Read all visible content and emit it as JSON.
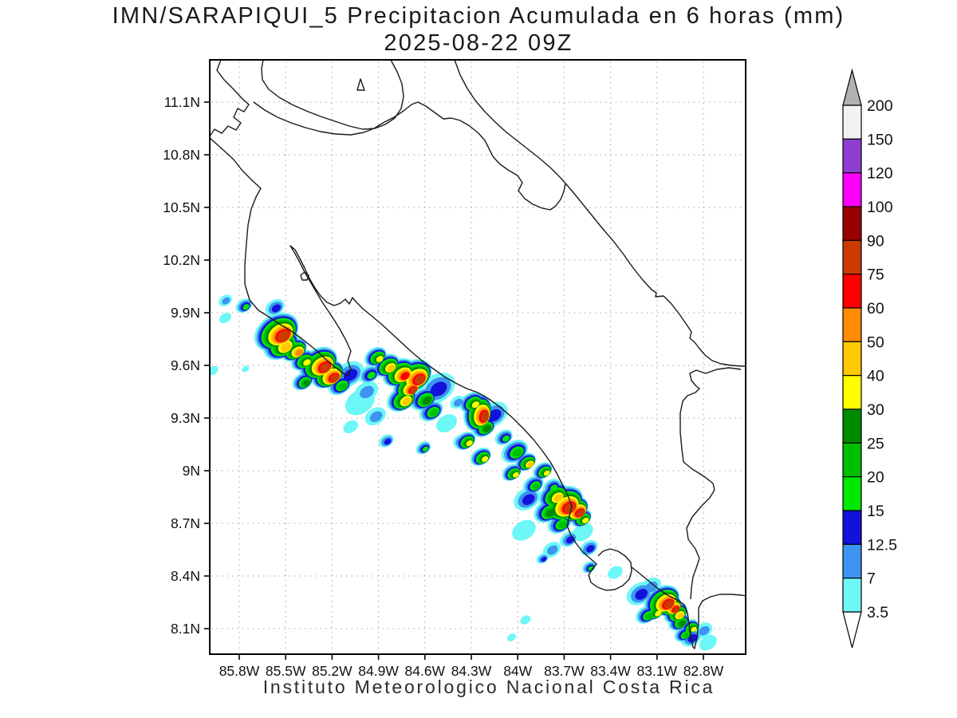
{
  "title": {
    "line1": "IMN/SARAPIQUI_5 Precipitacion Acumulada en 6 horas (mm)",
    "line2": "2025-08-22 09Z"
  },
  "footer": {
    "text": "Instituto Meteorologico Nacional Costa Rica"
  },
  "axes": {
    "lat_ticks": [
      {
        "label": "11.1N",
        "deg": 11.1
      },
      {
        "label": "10.8N",
        "deg": 10.8
      },
      {
        "label": "10.5N",
        "deg": 10.5
      },
      {
        "label": "10.2N",
        "deg": 10.2
      },
      {
        "label": "9.9N",
        "deg": 9.9
      },
      {
        "label": "9.6N",
        "deg": 9.6
      },
      {
        "label": "9.3N",
        "deg": 9.3
      },
      {
        "label": "9N",
        "deg": 9.0
      },
      {
        "label": "8.7N",
        "deg": 8.7
      },
      {
        "label": "8.4N",
        "deg": 8.4
      },
      {
        "label": "8.1N",
        "deg": 8.1
      }
    ],
    "lon_ticks": [
      {
        "label": "85.8W",
        "deg": 85.8
      },
      {
        "label": "85.5W",
        "deg": 85.5
      },
      {
        "label": "85.2W",
        "deg": 85.2
      },
      {
        "label": "84.9W",
        "deg": 84.9
      },
      {
        "label": "84.6W",
        "deg": 84.6
      },
      {
        "label": "84.3W",
        "deg": 84.3
      },
      {
        "label": "84W",
        "deg": 84.0
      },
      {
        "label": "83.7W",
        "deg": 83.7
      },
      {
        "label": "83.4W",
        "deg": 83.4
      },
      {
        "label": "83.1W",
        "deg": 83.1
      },
      {
        "label": "82.8W",
        "deg": 82.8
      }
    ]
  },
  "colorbar": {
    "labels_top_to_bottom": [
      "200",
      "150",
      "120",
      "100",
      "90",
      "75",
      "60",
      "50",
      "40",
      "30",
      "25",
      "20",
      "15",
      "12.5",
      "7",
      "3.5"
    ],
    "box_colors_top_to_bottom": [
      "#f2f2f2",
      "#8c3fd1",
      "#ff00ff",
      "#990000",
      "#cc3a00",
      "#ff0000",
      "#ff8c00",
      "#ffc800",
      "#ffff00",
      "#008a00",
      "#00be00",
      "#00e800",
      "#1212dc",
      "#3d94f0",
      "#6ef7f7"
    ],
    "arrow_top_color": "#b2b2b2",
    "arrow_bottom_color": "#ffffff"
  },
  "chart_data": {
    "type": "contour-map",
    "title": "IMN/SARAPIQUI_5 Precipitacion Acumulada en 6 horas (mm)",
    "subtitle": "2025-08-22 09Z",
    "units": "mm",
    "levels": [
      3.5,
      7,
      12.5,
      15,
      20,
      25,
      30,
      40,
      50,
      60,
      75,
      90,
      100,
      120,
      150,
      200
    ],
    "palette_low_to_high": [
      "#6ef7f7",
      "#3d94f0",
      "#1212dc",
      "#00e800",
      "#00be00",
      "#008a00",
      "#ffff00",
      "#ffc800",
      "#ff8c00",
      "#ff0000",
      "#cc3a00",
      "#990000"
    ],
    "extent": {
      "lon_w": [
        85.92,
        82.52
      ],
      "lat_n": [
        7.96,
        11.34
      ]
    },
    "grid_color": "#9a9a9a",
    "cells": [
      [
        85.89,
        9.97,
        1,
        9
      ],
      [
        85.89,
        9.87,
        0,
        8
      ],
      [
        85.77,
        9.94,
        3,
        11
      ],
      [
        85.57,
        9.93,
        2,
        13
      ],
      [
        85.97,
        9.57,
        0,
        7
      ],
      [
        85.76,
        9.58,
        0,
        5
      ],
      [
        85.56,
        9.79,
        10,
        30
      ],
      [
        85.53,
        9.72,
        7,
        24
      ],
      [
        85.45,
        9.69,
        8,
        18
      ],
      [
        85.39,
        9.63,
        6,
        16
      ],
      [
        85.29,
        9.61,
        10,
        26
      ],
      [
        85.23,
        9.55,
        10,
        22
      ],
      [
        85.39,
        9.51,
        5,
        14
      ],
      [
        85.15,
        9.49,
        4,
        16
      ],
      [
        85.09,
        9.55,
        2,
        20
      ],
      [
        85.52,
        9.84,
        2,
        14
      ],
      [
        85.02,
        9.39,
        0,
        20
      ],
      [
        84.98,
        9.45,
        1,
        16
      ],
      [
        84.92,
        9.31,
        1,
        14
      ],
      [
        84.85,
        9.17,
        2,
        10
      ],
      [
        85.08,
        9.25,
        0,
        10
      ],
      [
        84.92,
        9.65,
        6,
        15
      ],
      [
        84.85,
        9.6,
        7,
        18
      ],
      [
        84.77,
        9.56,
        9,
        22
      ],
      [
        84.68,
        9.54,
        10,
        26
      ],
      [
        84.72,
        9.48,
        10,
        18
      ],
      [
        84.75,
        9.41,
        7,
        20
      ],
      [
        84.61,
        9.41,
        5,
        18
      ],
      [
        84.56,
        9.34,
        4,
        16
      ],
      [
        84.96,
        9.55,
        3,
        14
      ],
      [
        84.52,
        9.47,
        2,
        24
      ],
      [
        84.61,
        9.13,
        3,
        10
      ],
      [
        84.37,
        9.17,
        2,
        10
      ],
      [
        84.46,
        9.27,
        0,
        14
      ],
      [
        84.39,
        9.39,
        1,
        10
      ],
      [
        84.26,
        9.33,
        10,
        24,
        -75
      ],
      [
        84.3,
        9.39,
        6,
        16
      ],
      [
        84.22,
        9.25,
        5,
        16
      ],
      [
        84.34,
        9.17,
        6,
        14
      ],
      [
        84.24,
        9.08,
        6,
        14
      ],
      [
        84.09,
        9.19,
        3,
        12
      ],
      [
        84.16,
        9.32,
        2,
        20
      ],
      [
        84.04,
        8.99,
        6,
        13
      ],
      [
        83.95,
        9.05,
        7,
        14
      ],
      [
        83.84,
        9.0,
        6,
        13
      ],
      [
        83.9,
        8.92,
        4,
        14
      ],
      [
        84.02,
        9.11,
        4,
        18
      ],
      [
        83.78,
        8.91,
        3,
        12
      ],
      [
        83.71,
        8.81,
        10,
        28
      ],
      [
        83.64,
        8.78,
        10,
        20
      ],
      [
        83.77,
        8.86,
        7,
        20
      ],
      [
        83.81,
        8.77,
        5,
        18
      ],
      [
        83.73,
        8.7,
        4,
        16
      ],
      [
        83.59,
        8.73,
        6,
        14
      ],
      [
        83.94,
        8.84,
        2,
        18
      ],
      [
        83.67,
        8.61,
        2,
        12
      ],
      [
        83.54,
        8.56,
        2,
        12
      ],
      [
        83.54,
        8.45,
        3,
        9
      ],
      [
        83.78,
        8.55,
        1,
        12
      ],
      [
        83.84,
        8.5,
        2,
        8
      ],
      [
        83.96,
        8.66,
        0,
        16
      ],
      [
        83.58,
        8.65,
        0,
        14
      ],
      [
        83.07,
        8.26,
        10,
        24
      ],
      [
        83.02,
        8.23,
        10,
        16
      ],
      [
        82.98,
        8.19,
        7,
        16
      ],
      [
        83.12,
        8.2,
        6,
        14
      ],
      [
        82.96,
        8.14,
        5,
        14
      ],
      [
        82.89,
        8.11,
        6,
        12
      ],
      [
        83.17,
        8.18,
        4,
        14
      ],
      [
        82.93,
        8.07,
        4,
        12
      ],
      [
        83.21,
        8.3,
        2,
        18
      ],
      [
        82.88,
        8.05,
        2,
        14
      ],
      [
        82.8,
        8.09,
        1,
        12
      ],
      [
        82.77,
        8.02,
        0,
        12
      ],
      [
        83.14,
        8.34,
        1,
        14
      ],
      [
        83.37,
        8.42,
        0,
        10
      ],
      [
        83.95,
        8.15,
        0,
        7
      ],
      [
        84.04,
        8.05,
        0,
        6
      ]
    ],
    "coastline_paths": [
      "M277,75 L272,88 L281,100 L293,112 L304,124 L312,131 L306,140 L298,136 L293,147 L302,154 L296,163 L286,158 L278,167 L269,162 L262,172 L271,180 L281,189 L293,200 L304,214 L317,227 L327,236 L321,247 L315,262 L311,282 L309,305 L307,332 L307,356 L313,376 L324,389 L337,397 L350,406 L364,414 L379,425 L394,437 L408,450 L420,460 L429,467 L436,471 L440,463 L436,452 L440,440 L434,427 L427,414 L419,401 L411,389 L403,377 L396,365 L389,353 L383,343 L377,331 L370,318 L364,308 L370,313 L376,324 L382,336 L388,349 L395,361 L402,371 L410,379 L419,383 L427,380 L433,375 L438,381 L442,373 L447,379 L455,387 L466,396 L478,406 L490,417 L503,429 L516,441 L529,452 L543,462 L557,472 L571,480 L585,487 L599,492 L613,500 L628,511 L643,524 L657,538 L669,551 L680,565 L690,579 L698,593 L705,607 L712,621 L717,634 L714,647 L711,659 L716,671 L723,682 L731,692 L740,700 L748,707 L743,713 L738,721 L741,730 L749,736 L760,740 L771,739 L781,734 L789,726 L792,716 L791,705 L784,697 L775,691 L765,688 L756,691 L750,697 M792,711 L801,718 L812,727 L824,737 L837,746 L849,752 L858,758 L862,768 L864,782 L866,797 L869,811 L871,813 L874,799 L876,781 L876,762 L881,753 L891,748 L903,745 L917,745 L930,746 L935,747",
      "M490,75 L498,90 L504,105 L506,121 L503,136 L495,148 L483,156 L470,161 L455,162 L438,158 L420,152 L402,146 L384,139 L366,131 L350,122 L337,112 L329,100 L328,86 L330,75 M318,128 L332,138 L348,147 L365,154 L383,160 L402,165 L421,168 L440,169 L456,166 L469,161 L482,153 L494,147 L506,139 L516,131 L524,128 L534,133 L545,141 L556,149 L566,148 L577,151 L589,158 L600,167 L608,176 L613,186 L618,196 L626,205 L637,213 L649,220 L655,229 L650,239 L658,249 L668,256 L680,261 L690,263 L697,258 L703,250 L707,240 L709,230 M448,113 L452,99 L457,113 Z M377,345 L382,341 L387,345 L385,351 L379,351 Z",
      "M570,75 L577,94 L586,111 L596,126 L608,140 L621,153 L634,165 L648,176 L662,187 L676,198 L690,210 L704,224 L717,239 L730,255 L743,271 L756,287 L769,302 L782,319 L794,336 L806,351 L817,363 L823,367 L822,372 L832,371 L842,381 L852,394 L861,407 L867,416 L865,424 L871,429 L877,437 L884,445 L893,452 L904,456 L917,458 L930,459 L935,459",
      "M929,463 L914,461 L899,463 L885,468 L873,464 L865,468 L867,477 L873,484 L877,487 L872,492 L862,496 L856,503 L853,518 L853,542 L855,563 L857,579 L868,588 L884,598 L894,606 L896,614 L890,624 L879,635 L868,648 L861,662 L863,676 L872,688 L877,700 L873,712 L869,723 L867,737 L866,751"
    ]
  }
}
